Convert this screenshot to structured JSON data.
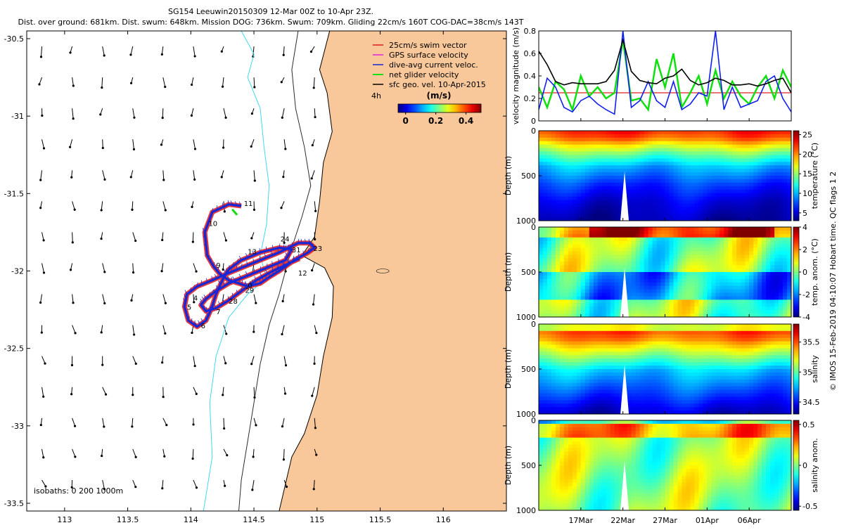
{
  "colors": {
    "land": "#f8c79a",
    "isobath_0": "#000000",
    "isobath_200": "#2b2b2b",
    "isobath_1000": "#40d9f0",
    "track_red": "#e0191c",
    "track_blue": "#1528d8",
    "vel_black": "#000000",
    "vel_green": "#10e010",
    "vel_blue": "#1020f0",
    "vel_red": "#e02020"
  },
  "footer_credit": "© IMOS 15-Feb-2019 04:10:07 Hobart time. QC flags 1  2",
  "chart_data": [
    {
      "id": "map",
      "type": "scatter",
      "title_line1": "SG154 Leeuwin20150309 12-Mar 00Z to 10-Apr 23Z.",
      "title_line2": "Dist. over ground: 681km. Dist. swum: 648km. Mission DOG: 736km. Swum: 709km. Gliding 22cm/s 160T COG-DAC=38cm/s 143T",
      "xlim": [
        112.7,
        116.5
      ],
      "ylim": [
        -33.55,
        -30.45
      ],
      "xticks": [
        "113",
        "113.5",
        "114",
        "114.5",
        "115",
        "115.5",
        "116"
      ],
      "xtick_values": [
        113,
        113.5,
        114,
        114.5,
        115,
        115.5,
        116
      ],
      "yticks": [
        "-30.5",
        "-31",
        "-31.5",
        "-32",
        "-32.5",
        "-33",
        "-33.5"
      ],
      "ytick_values": [
        -30.5,
        -31,
        -31.5,
        -32,
        -32.5,
        -33,
        -33.5
      ],
      "legend": [
        {
          "label": "25cm/s swim vector",
          "color": "#e0191c"
        },
        {
          "label": "GPS surface velocity",
          "color": "#e020e0"
        },
        {
          "label": "dive-avg current veloc.",
          "color": "#1528d8"
        },
        {
          "label": "net glider velocity",
          "color": "#10e010"
        },
        {
          "label": "sfc geo. vel. 10-Apr-2015",
          "color": "#000000"
        }
      ],
      "legend_note": "4h",
      "colorbar_title": "(m/s)",
      "colorbar_ticks": [
        "0",
        "0.2",
        "0.4"
      ],
      "colorbar_values": [
        0,
        0.2,
        0.4
      ],
      "colorbar_range": [
        -0.05,
        0.5
      ],
      "isobath_label": "isobaths: 0   200  1000m",
      "coastline": [
        [
          115.1,
          -30.45
        ],
        [
          115.02,
          -30.7
        ],
        [
          115.08,
          -30.85
        ],
        [
          115.12,
          -31.1
        ],
        [
          115.05,
          -31.3
        ],
        [
          115.02,
          -31.55
        ],
        [
          114.98,
          -31.78
        ],
        [
          114.88,
          -31.9
        ],
        [
          115.06,
          -31.98
        ],
        [
          115.13,
          -32.1
        ],
        [
          115.12,
          -32.3
        ],
        [
          115.05,
          -32.55
        ],
        [
          115.0,
          -32.8
        ],
        [
          114.9,
          -33.05
        ],
        [
          114.8,
          -33.2
        ],
        [
          114.7,
          -33.55
        ]
      ],
      "isobath_200": [
        [
          114.85,
          -30.45
        ],
        [
          114.8,
          -30.7
        ],
        [
          114.83,
          -30.95
        ],
        [
          114.9,
          -31.2
        ],
        [
          114.95,
          -31.45
        ],
        [
          114.88,
          -31.65
        ],
        [
          114.8,
          -31.85
        ],
        [
          114.75,
          -32.0
        ],
        [
          114.7,
          -32.15
        ],
        [
          114.62,
          -32.35
        ],
        [
          114.55,
          -32.6
        ],
        [
          114.5,
          -32.85
        ],
        [
          114.45,
          -33.1
        ],
        [
          114.4,
          -33.35
        ],
        [
          114.38,
          -33.55
        ]
      ],
      "isobath_1000": [
        [
          114.4,
          -30.45
        ],
        [
          114.5,
          -30.6
        ],
        [
          114.45,
          -30.75
        ],
        [
          114.55,
          -30.95
        ],
        [
          114.58,
          -31.2
        ],
        [
          114.62,
          -31.45
        ],
        [
          114.6,
          -31.7
        ],
        [
          114.55,
          -31.9
        ],
        [
          114.6,
          -32.05
        ],
        [
          114.45,
          -32.15
        ],
        [
          114.3,
          -32.3
        ],
        [
          114.2,
          -32.55
        ],
        [
          114.15,
          -32.85
        ],
        [
          114.17,
          -33.2
        ],
        [
          114.1,
          -33.55
        ]
      ],
      "track": [
        [
          114.4,
          -31.58
        ],
        [
          114.3,
          -31.57
        ],
        [
          114.17,
          -31.62
        ],
        [
          114.11,
          -31.75
        ],
        [
          114.13,
          -31.9
        ],
        [
          114.18,
          -31.97
        ],
        [
          114.23,
          -32.02
        ],
        [
          114.3,
          -32.06
        ],
        [
          114.38,
          -32.08
        ],
        [
          114.45,
          -32.1
        ],
        [
          114.55,
          -32.08
        ],
        [
          114.62,
          -32.04
        ],
        [
          114.7,
          -32.0
        ],
        [
          114.82,
          -31.93
        ],
        [
          114.93,
          -31.88
        ],
        [
          114.98,
          -31.85
        ],
        [
          114.94,
          -31.82
        ],
        [
          114.85,
          -31.82
        ],
        [
          114.7,
          -31.88
        ],
        [
          114.55,
          -31.93
        ],
        [
          114.4,
          -31.98
        ],
        [
          114.28,
          -32.02
        ],
        [
          114.17,
          -32.06
        ],
        [
          114.05,
          -32.1
        ],
        [
          113.97,
          -32.15
        ],
        [
          113.95,
          -32.23
        ],
        [
          113.98,
          -32.32
        ],
        [
          114.05,
          -32.36
        ],
        [
          114.12,
          -32.32
        ],
        [
          114.16,
          -32.25
        ],
        [
          114.2,
          -32.15
        ],
        [
          114.25,
          -32.06
        ],
        [
          114.3,
          -31.99
        ],
        [
          114.4,
          -31.93
        ],
        [
          114.55,
          -31.88
        ],
        [
          114.7,
          -31.85
        ],
        [
          114.8,
          -31.86
        ],
        [
          114.75,
          -31.93
        ],
        [
          114.6,
          -31.98
        ],
        [
          114.45,
          -32.03
        ],
        [
          114.3,
          -32.08
        ],
        [
          114.2,
          -32.13
        ],
        [
          114.12,
          -32.18
        ],
        [
          114.08,
          -32.22
        ],
        [
          114.12,
          -32.26
        ],
        [
          114.2,
          -32.24
        ],
        [
          114.3,
          -32.19
        ],
        [
          114.4,
          -32.13
        ],
        [
          114.52,
          -32.06
        ],
        [
          114.65,
          -32.0
        ],
        [
          114.78,
          -31.95
        ],
        [
          114.86,
          -31.92
        ]
      ],
      "track_labels": [
        {
          "text": "11",
          "x": 114.42,
          "y": -31.58
        },
        {
          "text": "10",
          "x": 114.14,
          "y": -31.71
        },
        {
          "text": "13",
          "x": 114.45,
          "y": -31.89
        },
        {
          "text": "24",
          "x": 114.71,
          "y": -31.81
        },
        {
          "text": "23",
          "x": 114.97,
          "y": -31.87
        },
        {
          "text": "31",
          "x": 114.8,
          "y": -31.88
        },
        {
          "text": "9",
          "x": 114.2,
          "y": -31.98
        },
        {
          "text": "12",
          "x": 114.85,
          "y": -32.03
        },
        {
          "text": "0",
          "x": 114.45,
          "y": -32.11
        },
        {
          "text": "29",
          "x": 114.43,
          "y": -32.14
        },
        {
          "text": "4",
          "x": 114.02,
          "y": -32.19
        },
        {
          "text": "5",
          "x": 113.97,
          "y": -32.25
        },
        {
          "text": "28",
          "x": 114.3,
          "y": -32.21
        },
        {
          "text": "7",
          "x": 114.2,
          "y": -32.28
        },
        {
          "text": "6",
          "x": 114.08,
          "y": -32.37
        }
      ],
      "arrow_grid": {
        "lon": [
          112.82,
          113.06,
          113.3,
          113.54,
          113.78,
          114.02,
          114.26,
          114.5,
          114.74,
          114.98
        ],
        "lat": [
          -30.55,
          -30.75,
          -30.95,
          -31.15,
          -31.35,
          -31.55,
          -31.75,
          -31.95,
          -32.15,
          -32.35,
          -32.55,
          -32.75,
          -32.95,
          -33.15,
          -33.35
        ]
      },
      "marker": {
        "x": 114.35,
        "y": -31.62
      }
    },
    {
      "id": "velocity_panel",
      "type": "line",
      "ylabel": "velocity magnitude (m/s)",
      "ylim": [
        0,
        0.8
      ],
      "yticks": [
        "0",
        "0.2",
        "0.4",
        "0.6",
        "0.8"
      ],
      "ytick_values": [
        0,
        0.2,
        0.4,
        0.6,
        0.8
      ],
      "x_days_range": [
        12,
        42
      ],
      "reference_line": 0.25,
      "series": [
        {
          "name": "sfc geo. vel.",
          "color": "#000000",
          "x": [
            12,
            13,
            14,
            15,
            16,
            17,
            18,
            19,
            20,
            21,
            22,
            23,
            24,
            25,
            26,
            27,
            28,
            29,
            30,
            31,
            32,
            33,
            34,
            35,
            36,
            37,
            38,
            39,
            40,
            41,
            42
          ],
          "values": [
            0.62,
            0.5,
            0.35,
            0.32,
            0.34,
            0.33,
            0.33,
            0.33,
            0.35,
            0.45,
            0.72,
            0.44,
            0.36,
            0.34,
            0.33,
            0.38,
            0.4,
            0.46,
            0.36,
            0.32,
            0.34,
            0.38,
            0.36,
            0.32,
            0.32,
            0.33,
            0.31,
            0.33,
            0.36,
            0.38,
            0.25
          ]
        },
        {
          "name": "dive-avg current veloc.",
          "color": "#1020f0",
          "x": [
            12,
            13,
            14,
            15,
            16,
            17,
            18,
            19,
            20,
            21,
            22,
            23,
            24,
            25,
            26,
            27,
            28,
            29,
            30,
            31,
            32,
            33,
            34,
            35,
            36,
            37,
            38,
            39,
            40,
            41,
            42
          ],
          "values": [
            0.1,
            0.38,
            0.3,
            0.12,
            0.08,
            0.18,
            0.22,
            0.15,
            0.1,
            0.06,
            0.8,
            0.12,
            0.18,
            0.35,
            0.18,
            0.12,
            0.35,
            0.1,
            0.15,
            0.25,
            0.22,
            0.8,
            0.1,
            0.3,
            0.12,
            0.15,
            0.18,
            0.35,
            0.4,
            0.2,
            0.08
          ]
        },
        {
          "name": "net glider velocity",
          "color": "#10e010",
          "x": [
            12,
            13,
            14,
            15,
            16,
            17,
            18,
            19,
            20,
            21,
            22,
            23,
            24,
            25,
            26,
            27,
            28,
            29,
            30,
            31,
            32,
            33,
            34,
            35,
            36,
            37,
            38,
            39,
            40,
            41,
            42
          ],
          "values": [
            0.3,
            0.12,
            0.35,
            0.28,
            0.1,
            0.4,
            0.22,
            0.3,
            0.2,
            0.25,
            0.72,
            0.18,
            0.2,
            0.1,
            0.55,
            0.3,
            0.6,
            0.12,
            0.25,
            0.4,
            0.15,
            0.45,
            0.2,
            0.35,
            0.22,
            0.15,
            0.3,
            0.4,
            0.2,
            0.45,
            0.3
          ]
        }
      ]
    },
    {
      "id": "temperature_panel",
      "type": "heatmap",
      "ylabel": "Depth (m)",
      "cbar_label": "temperature (°C)",
      "ylim": [
        1000,
        0
      ],
      "yticks": [
        "0",
        "500",
        "1000"
      ],
      "ytick_values": [
        0,
        500,
        1000
      ],
      "cbar_ticks": [
        "5",
        "10",
        "15",
        "20",
        "25"
      ],
      "cbar_values": [
        5,
        10,
        15,
        20,
        25
      ],
      "vrange": [
        3,
        26
      ],
      "profile_depths": [
        0,
        80,
        160,
        260,
        400,
        600,
        800,
        1000
      ],
      "profile_values": [
        22.5,
        21,
        17.5,
        14,
        10,
        7,
        5,
        4
      ]
    },
    {
      "id": "temp_anom_panel",
      "type": "heatmap",
      "ylabel": "Depth (m)",
      "cbar_label": "temp. anom. (°C)",
      "ylim": [
        1000,
        0
      ],
      "yticks": [
        "0",
        "500",
        "1000"
      ],
      "ytick_values": [
        0,
        500,
        1000
      ],
      "cbar_ticks": [
        "-4",
        "-2",
        "0",
        "2",
        "4"
      ],
      "cbar_values": [
        -4,
        -2,
        0,
        2,
        4
      ],
      "vrange": [
        -4,
        4
      ]
    },
    {
      "id": "salinity_panel",
      "type": "heatmap",
      "ylabel": "Depth (m)",
      "cbar_label": "salinity",
      "ylim": [
        1000,
        0
      ],
      "yticks": [
        "0",
        "500",
        "1000"
      ],
      "ytick_values": [
        0,
        500,
        1000
      ],
      "cbar_ticks": [
        "34.5",
        "35",
        "35.5"
      ],
      "cbar_values": [
        34.5,
        35,
        35.5
      ],
      "vrange": [
        34.3,
        35.8
      ]
    },
    {
      "id": "salinity_anom_panel",
      "type": "heatmap",
      "ylabel": "Depth (m)",
      "cbar_label": "salinity anom.",
      "ylim": [
        1000,
        0
      ],
      "yticks": [
        "0",
        "500",
        "1000"
      ],
      "ytick_values": [
        0,
        500,
        1000
      ],
      "cbar_ticks": [
        "-0.5",
        "0",
        "0.5"
      ],
      "cbar_values": [
        -0.5,
        0,
        0.5
      ],
      "vrange": [
        -0.55,
        0.55
      ]
    },
    {
      "id": "time_axis",
      "type": "table",
      "x_days_range": [
        12,
        42
      ],
      "gap_day": 22.2,
      "ticks": [
        {
          "label": "17Mar",
          "day": 17
        },
        {
          "label": "22Mar",
          "day": 22
        },
        {
          "label": "27Mar",
          "day": 27
        },
        {
          "label": "01Apr",
          "day": 32
        },
        {
          "label": "06Apr",
          "day": 37
        }
      ]
    }
  ]
}
